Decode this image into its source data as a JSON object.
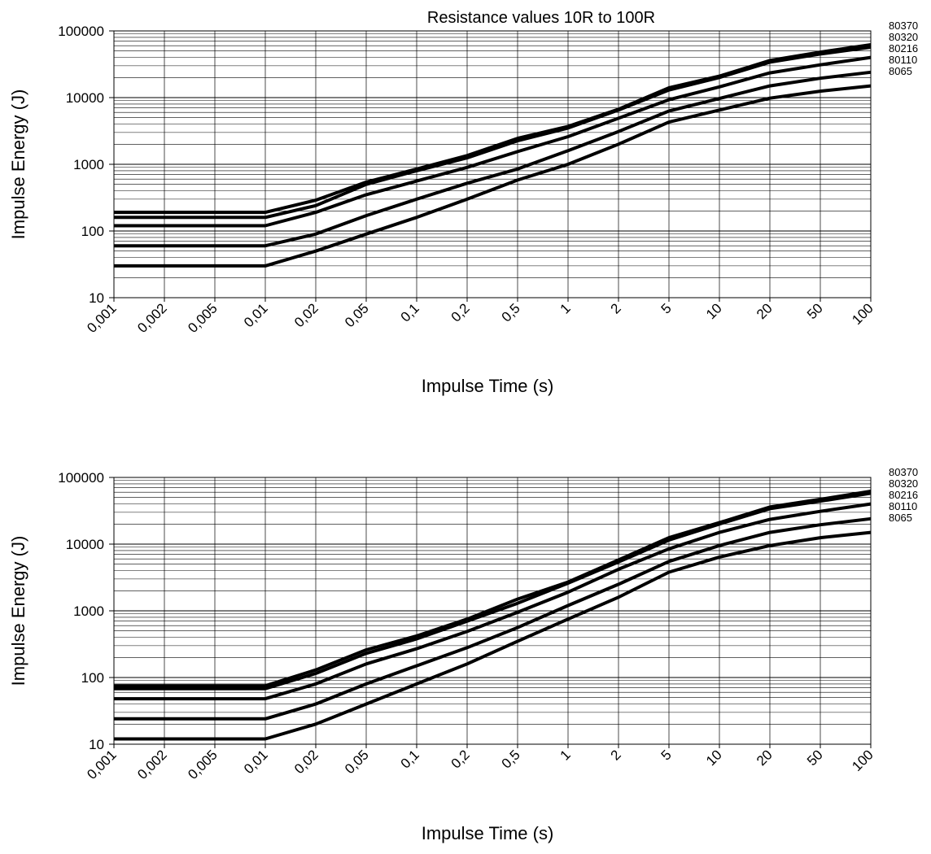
{
  "chart_data": [
    {
      "type": "line",
      "title": "Resistance values 10R to 100R",
      "xlabel": "Impulse Time (s)",
      "ylabel": "Impulse Energy (J)",
      "x_scale": "log",
      "y_scale": "log",
      "categories": [
        "0,001",
        "0,002",
        "0,005",
        "0,01",
        "0,02",
        "0,05",
        "0,1",
        "0,2",
        "0,5",
        "1",
        "2",
        "5",
        "10",
        "20",
        "50",
        "100"
      ],
      "x": [
        0.001,
        0.002,
        0.005,
        0.01,
        0.02,
        0.05,
        0.1,
        0.2,
        0.5,
        1,
        2,
        5,
        10,
        20,
        50,
        100
      ],
      "yticks": [
        "10",
        "100",
        "1000",
        "10000",
        "100000"
      ],
      "ylim": [
        10,
        100000
      ],
      "grid": true,
      "legend_position": "right",
      "series": [
        {
          "name": "80370",
          "values": [
            190,
            190,
            190,
            190,
            290,
            540,
            850,
            1350,
            2450,
            3700,
            6700,
            14000,
            21000,
            36000,
            48000,
            62000
          ]
        },
        {
          "name": "80320",
          "values": [
            160,
            160,
            160,
            160,
            240,
            500,
            800,
            1250,
            2250,
            3500,
            6500,
            13000,
            20000,
            34000,
            45000,
            57000
          ]
        },
        {
          "name": "80216",
          "values": [
            120,
            120,
            120,
            120,
            190,
            350,
            560,
            900,
            1550,
            2600,
            4900,
            9300,
            14500,
            23500,
            31000,
            40000
          ]
        },
        {
          "name": "80110",
          "values": [
            60,
            60,
            60,
            60,
            90,
            170,
            300,
            520,
            850,
            1600,
            3100,
            6300,
            9700,
            15000,
            19500,
            24000
          ]
        },
        {
          "name": "8065",
          "values": [
            30,
            30,
            30,
            30,
            50,
            90,
            160,
            300,
            580,
            1000,
            2000,
            4300,
            6500,
            9800,
            12500,
            15000
          ]
        }
      ]
    },
    {
      "type": "line",
      "title": "",
      "xlabel": "Impulse Time (s)",
      "ylabel": "Impulse Energy (J)",
      "x_scale": "log",
      "y_scale": "log",
      "categories": [
        "0,001",
        "0,002",
        "0,005",
        "0,01",
        "0,02",
        "0,05",
        "0,1",
        "0,2",
        "0,5",
        "1",
        "2",
        "5",
        "10",
        "20",
        "50",
        "100"
      ],
      "x": [
        0.001,
        0.002,
        0.005,
        0.01,
        0.02,
        0.05,
        0.1,
        0.2,
        0.5,
        1,
        2,
        5,
        10,
        20,
        50,
        100
      ],
      "yticks": [
        "10",
        "100",
        "1000",
        "10000",
        "100000"
      ],
      "ylim": [
        10,
        100000
      ],
      "grid": true,
      "legend_position": "right",
      "series": [
        {
          "name": "80370",
          "values": [
            75,
            75,
            75,
            75,
            130,
            260,
            420,
            750,
            1500,
            2700,
            5800,
            12500,
            21000,
            36000,
            47000,
            62000
          ]
        },
        {
          "name": "80320",
          "values": [
            68,
            68,
            68,
            68,
            115,
            230,
            380,
            700,
            1300,
            2600,
            5400,
            11500,
            20000,
            34000,
            44000,
            58000
          ]
        },
        {
          "name": "80216",
          "values": [
            48,
            48,
            48,
            48,
            80,
            160,
            270,
            490,
            950,
            1900,
            4200,
            8500,
            15000,
            23500,
            31000,
            40000
          ]
        },
        {
          "name": "80110",
          "values": [
            24,
            24,
            24,
            24,
            40,
            80,
            150,
            280,
            560,
            1200,
            2500,
            5500,
            9500,
            15000,
            19500,
            24000
          ]
        },
        {
          "name": "8065",
          "values": [
            12,
            12,
            12,
            12,
            20,
            40,
            80,
            160,
            350,
            750,
            1600,
            3800,
            6400,
            9500,
            12500,
            15000
          ]
        }
      ]
    }
  ]
}
